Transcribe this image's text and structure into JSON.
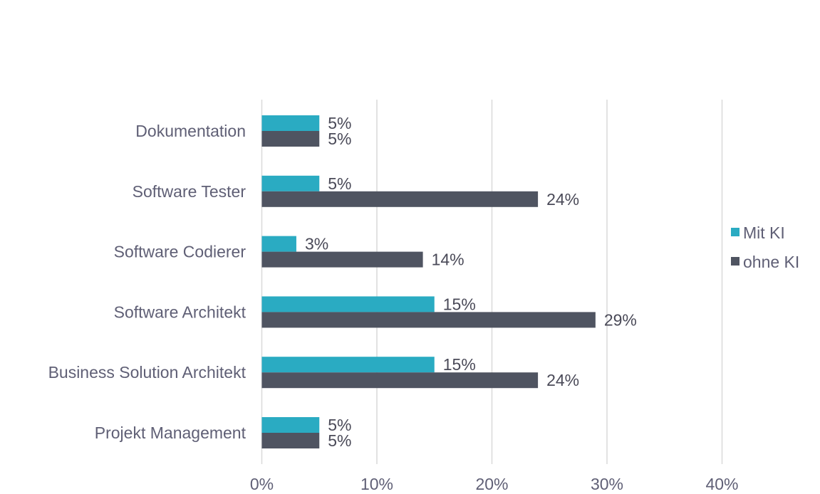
{
  "chart_data": {
    "type": "bar",
    "orientation": "horizontal",
    "categories": [
      "Dokumentation",
      "Software Tester",
      "Software Codierer",
      "Software Architekt",
      "Business Solution Architekt",
      "Projekt Management"
    ],
    "series": [
      {
        "name": "Mit KI",
        "color": "#2aabc2",
        "values": [
          5,
          5,
          3,
          15,
          15,
          5
        ],
        "labels": [
          "5%",
          "5%",
          "3%",
          "15%",
          "15%",
          "5%"
        ]
      },
      {
        "name": "ohne KI",
        "color": "#4f5461",
        "values": [
          5,
          24,
          14,
          29,
          24,
          5
        ],
        "labels": [
          "5%",
          "24%",
          "14%",
          "29%",
          "24%",
          "5%"
        ]
      }
    ],
    "xlim": [
      0,
      40
    ],
    "xticks": [
      0,
      10,
      20,
      30,
      40
    ],
    "xtick_labels": [
      "0%",
      "10%",
      "20%",
      "30%",
      "40%"
    ],
    "grid": "vertical",
    "legend_position": "right",
    "title": "",
    "xlabel": "",
    "ylabel": ""
  }
}
